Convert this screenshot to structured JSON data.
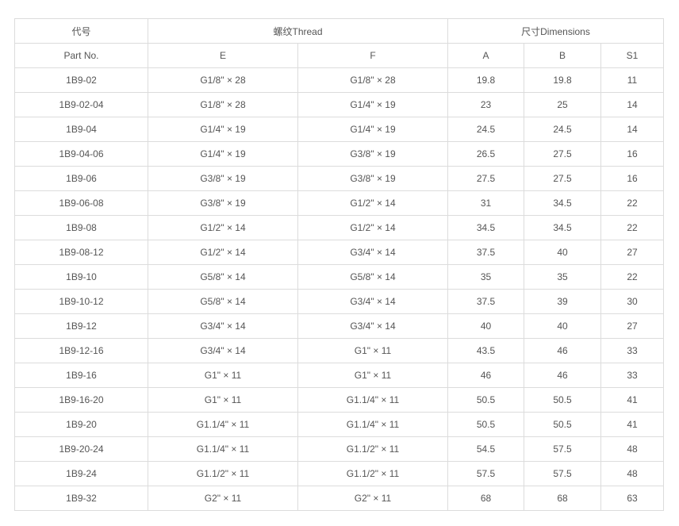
{
  "header": {
    "part_cn": "代号",
    "part_en": "Part No.",
    "thread": "螺纹Thread",
    "dimensions": "尺寸Dimensions",
    "columns": [
      "E",
      "F",
      "A",
      "B",
      "S1"
    ]
  },
  "rows": [
    [
      "1B9-02",
      "G1/8\" × 28",
      "G1/8\" × 28",
      "19.8",
      "19.8",
      "11"
    ],
    [
      "1B9-02-04",
      "G1/8\" × 28",
      "G1/4\" × 19",
      "23",
      "25",
      "14"
    ],
    [
      "1B9-04",
      "G1/4\" × 19",
      "G1/4\" × 19",
      "24.5",
      "24.5",
      "14"
    ],
    [
      "1B9-04-06",
      "G1/4\" × 19",
      "G3/8\" × 19",
      "26.5",
      "27.5",
      "16"
    ],
    [
      "1B9-06",
      "G3/8\" × 19",
      "G3/8\" × 19",
      "27.5",
      "27.5",
      "16"
    ],
    [
      "1B9-06-08",
      "G3/8\" × 19",
      "G1/2\" × 14",
      "31",
      "34.5",
      "22"
    ],
    [
      "1B9-08",
      "G1/2\" × 14",
      "G1/2\" × 14",
      "34.5",
      "34.5",
      "22"
    ],
    [
      "1B9-08-12",
      "G1/2\" × 14",
      "G3/4\" × 14",
      "37.5",
      "40",
      "27"
    ],
    [
      "1B9-10",
      "G5/8\" × 14",
      "G5/8\" × 14",
      "35",
      "35",
      "22"
    ],
    [
      "1B9-10-12",
      "G5/8\" × 14",
      "G3/4\" × 14",
      "37.5",
      "39",
      "30"
    ],
    [
      "1B9-12",
      "G3/4\" × 14",
      "G3/4\" × 14",
      "40",
      "40",
      "27"
    ],
    [
      "1B9-12-16",
      "G3/4\" × 14",
      "G1\" × 11",
      "43.5",
      "46",
      "33"
    ],
    [
      "1B9-16",
      "G1\" × 11",
      "G1\" × 11",
      "46",
      "46",
      "33"
    ],
    [
      "1B9-16-20",
      "G1\" × 11",
      "G1.1/4\" × 11",
      "50.5",
      "50.5",
      "41"
    ],
    [
      "1B9-20",
      "G1.1/4\" × 11",
      "G1.1/4\" × 11",
      "50.5",
      "50.5",
      "41"
    ],
    [
      "1B9-20-24",
      "G1.1/4\" × 11",
      "G1.1/2\" × 11",
      "54.5",
      "57.5",
      "48"
    ],
    [
      "1B9-24",
      "G1.1/2\" × 11",
      "G1.1/2\" × 11",
      "57.5",
      "57.5",
      "48"
    ],
    [
      "1B9-32",
      "G2\" × 11",
      "G2\" × 11",
      "68",
      "68",
      "63"
    ]
  ]
}
